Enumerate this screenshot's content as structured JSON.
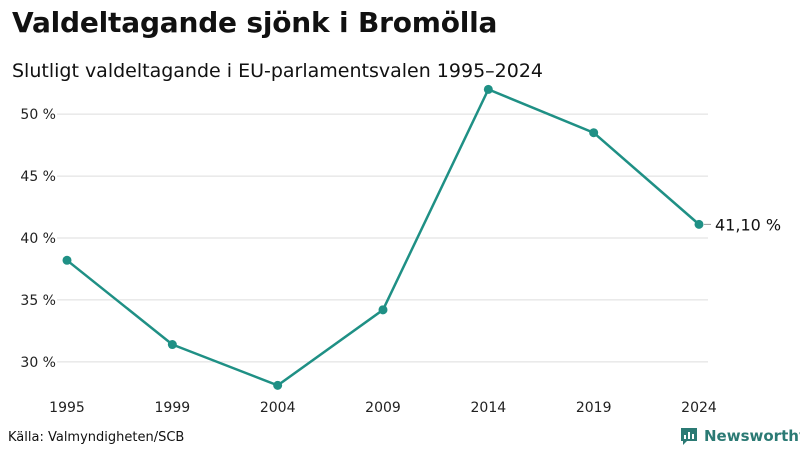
{
  "header": {
    "title": "Valdeltagande sjönk i Bromölla",
    "subtitle": "Slutligt valdeltagande i EU-parlamentsvalen 1995–2024"
  },
  "footer": {
    "source": "Källa: Valmyndigheten/SCB",
    "brand": "Newsworthy",
    "brand_icon": "bar-chart-logo-icon"
  },
  "colors": {
    "line": "#1f9085",
    "grid": "#dddddd",
    "brand": "#2b7a74"
  },
  "chart_data": {
    "type": "line",
    "title": "Valdeltagande sjönk i Bromölla",
    "subtitle": "Slutligt valdeltagande i EU-parlamentsvalen 1995–2024",
    "xlabel": "",
    "ylabel": "",
    "categories": [
      "1995",
      "1999",
      "2004",
      "2009",
      "2014",
      "2019",
      "2024"
    ],
    "series": [
      {
        "name": "Valdeltagande",
        "values": [
          38.2,
          31.4,
          28.1,
          34.2,
          52.0,
          48.5,
          41.1
        ]
      }
    ],
    "ylim": [
      27,
      53
    ],
    "yticks": [
      30,
      35,
      40,
      45,
      50
    ],
    "ytick_labels": [
      "30 %",
      "35 %",
      "40 %",
      "45 %",
      "50 %"
    ],
    "end_label": "41,10 %",
    "grid": true,
    "legend": "none"
  }
}
